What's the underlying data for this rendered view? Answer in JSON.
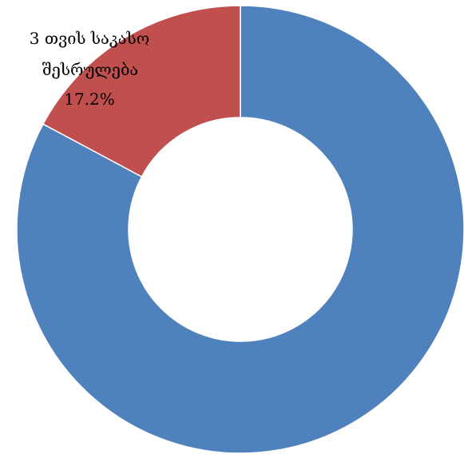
{
  "chart_data": {
    "type": "pie",
    "donut": true,
    "slices": [
      {
        "value": 82.8,
        "color": "#4F81BD",
        "label_lines": []
      },
      {
        "value": 17.2,
        "color": "#C0504D",
        "label_lines": [
          "3 თვის საკასო",
          "შესრულება",
          "17.2%"
        ]
      }
    ],
    "slice_order": "counterclockwise-from-top",
    "legend": "none"
  }
}
